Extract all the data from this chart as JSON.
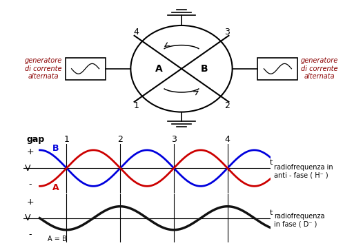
{
  "bg_color": "#ffffff",
  "wave_color_B": "#0000dd",
  "wave_color_A": "#cc0000",
  "wave_color_black": "#111111",
  "label_antiphase": "radiofrequenza in\nanti - fase ( H⁻ )",
  "label_inphase": "radiofrequenza\nin fase ( D⁻ )",
  "gen_label": "generatore\ndi corrente\nalternata",
  "fig_width": 5.26,
  "fig_height": 3.63,
  "fig_dpi": 100
}
